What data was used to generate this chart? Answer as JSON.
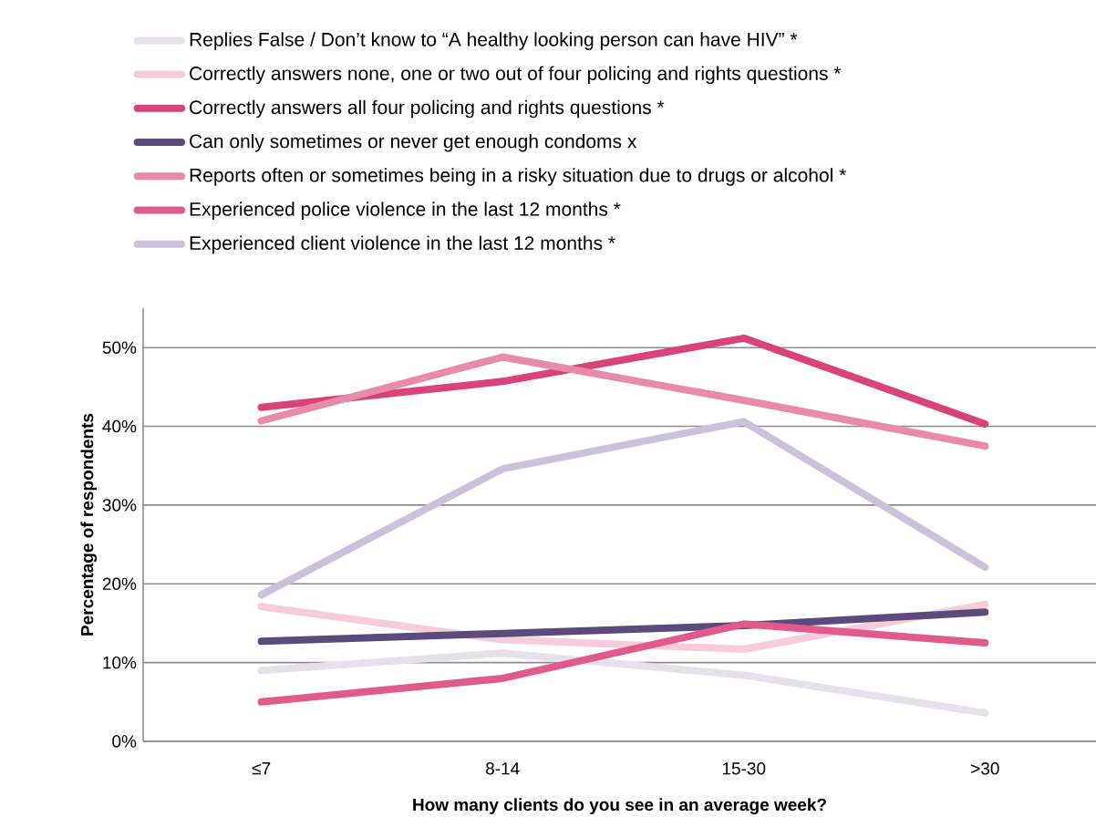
{
  "chart_data": {
    "type": "line",
    "xlabel": "How many clients do you see in an average week?",
    "ylabel": "Percentage of respondents",
    "categories": [
      "≤7",
      "8-14",
      "15-30",
      ">30"
    ],
    "ylim": [
      0,
      55
    ],
    "yticks": [
      {
        "value": 0,
        "label": "0%"
      },
      {
        "value": 10,
        "label": "10%"
      },
      {
        "value": 20,
        "label": "20%"
      },
      {
        "value": 30,
        "label": "30%"
      },
      {
        "value": 40,
        "label": "40%"
      },
      {
        "value": 50,
        "label": "50%"
      }
    ],
    "grid": "y",
    "legend": "top",
    "marker": "none",
    "line_style": "solid",
    "series": [
      {
        "name": "Replies False / Don’t know to “A healthy looking person can have HIV”  *",
        "color": "#e6e0ec",
        "values": [
          9.0,
          11.2,
          8.4,
          3.6
        ]
      },
      {
        "name": "Correctly answers none, one or two out of four policing and rights questions *",
        "color": "#f6ccd9",
        "values": [
          17.1,
          12.9,
          11.7,
          17.4
        ]
      },
      {
        "name": "Correctly answers all four policing and rights questions *",
        "color": "#d9437a",
        "values": [
          42.4,
          45.7,
          51.2,
          40.3
        ]
      },
      {
        "name": "Can only sometimes or never get enough condoms  x",
        "color": "#5c4a7c",
        "values": [
          12.7,
          13.7,
          14.7,
          16.4
        ]
      },
      {
        "name": "Reports often or sometimes being in a risky situation due to drugs or alcohol  *",
        "color": "#e98aab",
        "values": [
          40.7,
          48.8,
          43.3,
          37.5
        ]
      },
      {
        "name": "Experienced police violence in the last 12 months  *",
        "color": "#e05a8c",
        "values": [
          5.0,
          8.0,
          14.9,
          12.5
        ]
      },
      {
        "name": "Experienced client violence in the last 12 months  *",
        "color": "#ccc1dc",
        "values": [
          18.6,
          34.6,
          40.6,
          22.1
        ]
      }
    ]
  }
}
